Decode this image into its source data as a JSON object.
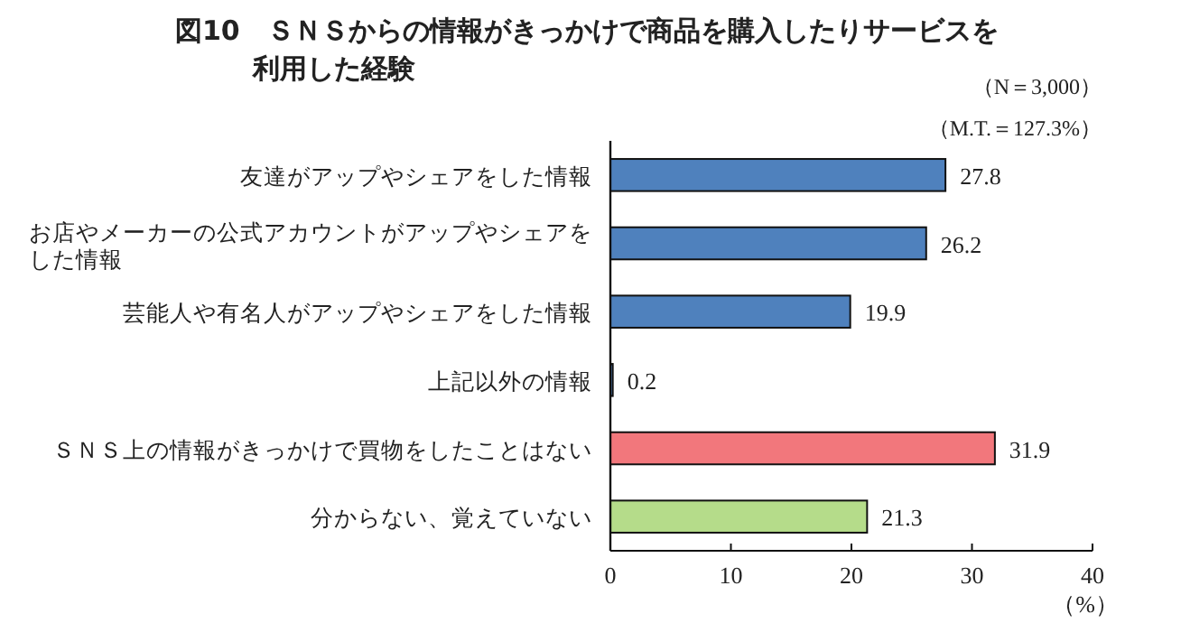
{
  "chart_data": {
    "type": "bar",
    "orientation": "horizontal",
    "title": "図10　ＳＮＳからの情報がきっかけで商品を購入したりサービスを利用した経験",
    "annotations": [
      "（N＝3,000）",
      "（M.T.＝127.3%）"
    ],
    "xlabel": "（%）",
    "categories": [
      "友達がアップやシェアをした情報",
      "お店やメーカーの公式アカウントがアップやシェアをした情報",
      "芸能人や有名人がアップやシェアをした情報",
      "上記以外の情報",
      "ＳＮＳ上の情報がきっかけで買物をしたことはない",
      "分からない、覚えていない"
    ],
    "values": [
      27.8,
      26.2,
      19.9,
      0.2,
      31.9,
      21.3
    ],
    "colors": [
      "#4f81bd",
      "#4f81bd",
      "#4f81bd",
      "#4f81bd",
      "#f2777c",
      "#b5dc8a"
    ],
    "xlim": [
      0,
      40
    ],
    "xticks": [
      0,
      10,
      20,
      30,
      40
    ],
    "data_labels": true,
    "grid": false
  }
}
